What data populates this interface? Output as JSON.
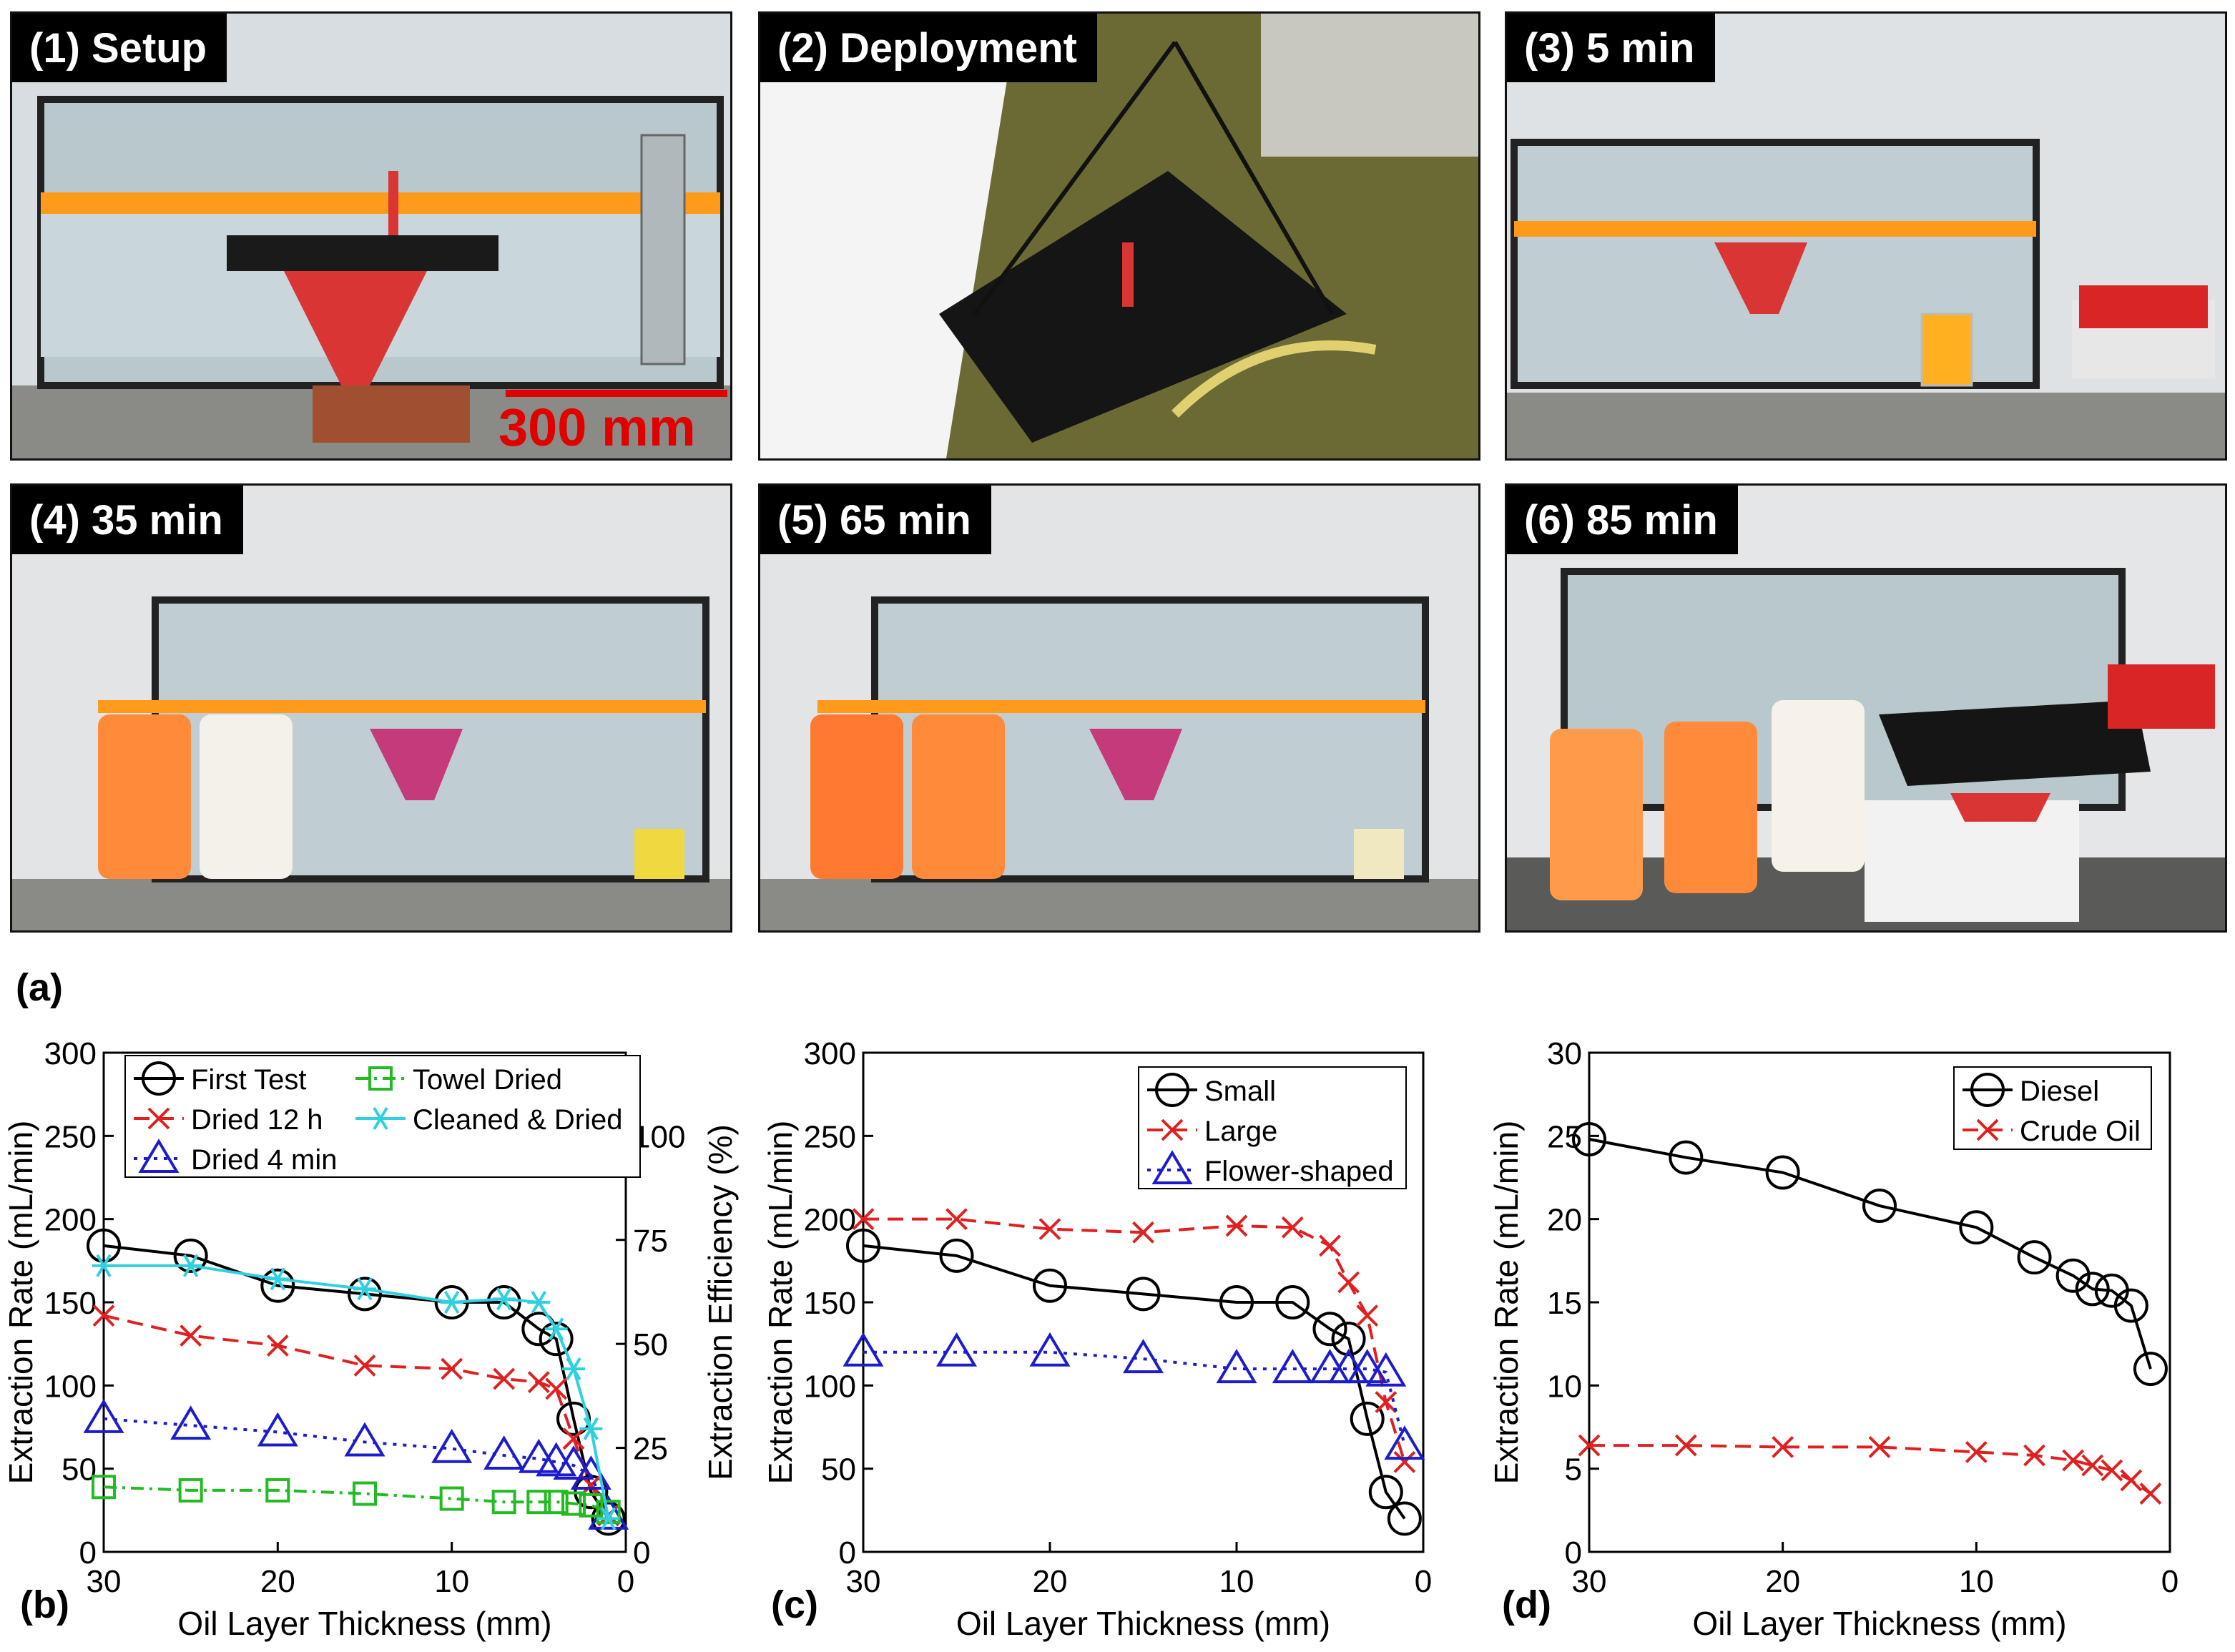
{
  "figure_label": "(a)",
  "photos": [
    {
      "label": "(1) Setup",
      "scale_bar": "300 mm"
    },
    {
      "label": "(2) Deployment"
    },
    {
      "label": "(3) 5 min"
    },
    {
      "label": "(4) 35 min"
    },
    {
      "label": "(5) 65 min"
    },
    {
      "label": "(6) 85 min"
    }
  ],
  "chart_data": [
    {
      "type": "line",
      "panel": "(b)",
      "xlabel": "Oil Layer Thickness (mm)",
      "ylabel": "Extraction Rate (mL/min)",
      "ylabel_right": "Extraction Efficiency (%)",
      "xlim": [
        30,
        0
      ],
      "ylim": [
        0,
        300
      ],
      "xticks": [
        "30",
        "20",
        "10",
        "0"
      ],
      "yticks": [
        "0",
        "50",
        "100",
        "150",
        "200",
        "250",
        "300"
      ],
      "yticks_right": [
        "0",
        "25",
        "50",
        "75",
        "100"
      ],
      "legend_position": "top",
      "series": [
        {
          "name": "First Test",
          "color": "#000000",
          "marker": "circle",
          "dash": "solid",
          "x": [
            30,
            25,
            20,
            15,
            10,
            7,
            5,
            4,
            3,
            2,
            1
          ],
          "y": [
            184,
            178,
            160,
            155,
            150,
            150,
            134,
            128,
            80,
            36,
            20
          ]
        },
        {
          "name": "Dried 12 h",
          "color": "#e02020",
          "marker": "x",
          "dash": "dashed",
          "x": [
            30,
            25,
            20,
            15,
            10,
            7,
            5,
            4,
            3,
            2,
            1
          ],
          "y": [
            142,
            130,
            124,
            112,
            110,
            104,
            102,
            98,
            68,
            40,
            22
          ]
        },
        {
          "name": "Dried 4 min",
          "color": "#1c1ccc",
          "marker": "triangle",
          "dash": "dotted",
          "x": [
            30,
            25,
            20,
            15,
            10,
            7,
            5,
            4,
            3,
            2,
            1
          ],
          "y": [
            80,
            76,
            72,
            66,
            62,
            58,
            56,
            54,
            52,
            46,
            22
          ]
        },
        {
          "name": "Towel Dried",
          "color": "#22bb22",
          "marker": "square",
          "dash": "dashdot",
          "x": [
            30,
            25,
            20,
            15,
            10,
            7,
            5,
            4,
            3,
            2,
            1
          ],
          "y": [
            39,
            37,
            37,
            35,
            32,
            30,
            30,
            30,
            29,
            28,
            24
          ]
        },
        {
          "name": "Cleaned & Dried",
          "color": "#30d0e0",
          "marker": "asterisk",
          "dash": "solid",
          "x": [
            30,
            25,
            20,
            15,
            10,
            7,
            5,
            4,
            3,
            2,
            1
          ],
          "y": [
            172,
            172,
            164,
            158,
            150,
            152,
            150,
            134,
            110,
            74,
            20
          ]
        }
      ]
    },
    {
      "type": "line",
      "panel": "(c)",
      "xlabel": "Oil Layer Thickness (mm)",
      "ylabel": "Extraction Rate (mL/min)",
      "xlim": [
        30,
        0
      ],
      "ylim": [
        0,
        300
      ],
      "xticks": [
        "30",
        "20",
        "10",
        "0"
      ],
      "yticks": [
        "0",
        "50",
        "100",
        "150",
        "200",
        "250",
        "300"
      ],
      "legend_position": "top-right",
      "series": [
        {
          "name": "Small",
          "color": "#000000",
          "marker": "circle",
          "dash": "solid",
          "x": [
            30,
            25,
            20,
            15,
            10,
            7,
            5,
            4,
            3,
            2,
            1
          ],
          "y": [
            184,
            178,
            160,
            155,
            150,
            150,
            134,
            128,
            80,
            36,
            20
          ]
        },
        {
          "name": "Large",
          "color": "#e02020",
          "marker": "x",
          "dash": "dashed",
          "x": [
            30,
            25,
            20,
            15,
            10,
            7,
            5,
            4,
            3,
            2,
            1
          ],
          "y": [
            200,
            200,
            194,
            192,
            196,
            195,
            184,
            162,
            142,
            90,
            54
          ]
        },
        {
          "name": "Flower-shaped",
          "color": "#1c1ccc",
          "marker": "triangle",
          "dash": "dotted",
          "x": [
            30,
            25,
            20,
            15,
            10,
            7,
            5,
            4,
            3,
            2,
            1
          ],
          "y": [
            120,
            120,
            120,
            116,
            110,
            110,
            110,
            110,
            110,
            108,
            64
          ]
        }
      ]
    },
    {
      "type": "line",
      "panel": "(d)",
      "xlabel": "Oil Layer Thickness (mm)",
      "ylabel": "Extraction Rate (mL/min)",
      "xlim": [
        30,
        0
      ],
      "ylim": [
        0,
        30
      ],
      "xticks": [
        "30",
        "20",
        "10",
        "0"
      ],
      "yticks": [
        "0",
        "5",
        "10",
        "15",
        "20",
        "25",
        "30"
      ],
      "legend_position": "top-right",
      "series": [
        {
          "name": "Diesel",
          "color": "#000000",
          "marker": "circle",
          "dash": "solid",
          "x": [
            30,
            25,
            20,
            15,
            10,
            7,
            5,
            4,
            3,
            2,
            1
          ],
          "y": [
            24.8,
            23.7,
            22.8,
            20.8,
            19.5,
            17.7,
            16.6,
            15.8,
            15.7,
            14.8,
            11
          ]
        },
        {
          "name": "Crude Oil",
          "color": "#e02020",
          "marker": "x",
          "dash": "dashed",
          "x": [
            30,
            25,
            20,
            15,
            10,
            7,
            5,
            4,
            3,
            2,
            1
          ],
          "y": [
            6.4,
            6.4,
            6.3,
            6.3,
            6.0,
            5.8,
            5.5,
            5.2,
            4.9,
            4.3,
            3.5
          ]
        }
      ]
    }
  ]
}
